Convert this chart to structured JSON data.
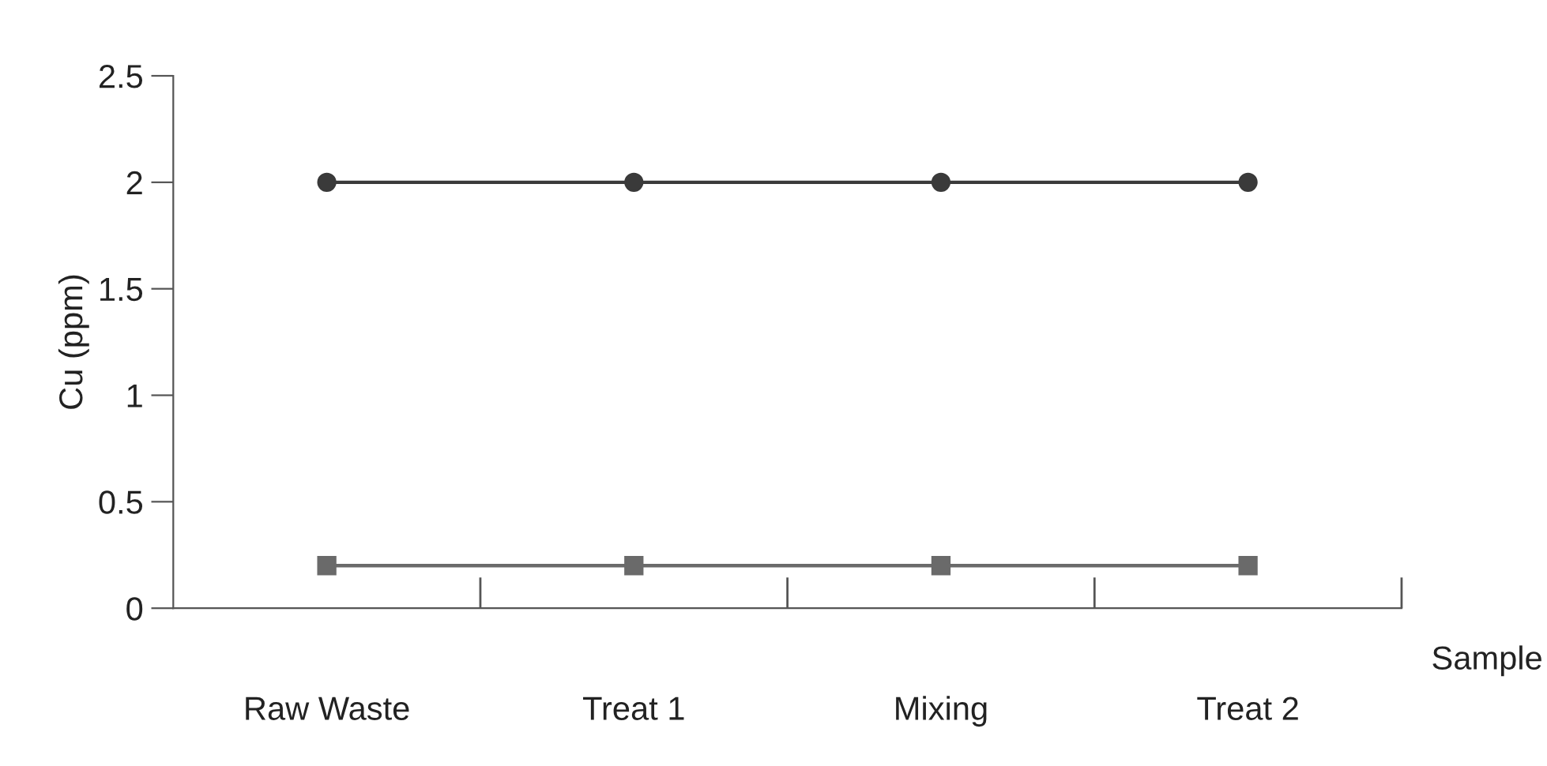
{
  "chart_data": {
    "type": "line",
    "xlabel": "Sample",
    "ylabel": "Cu (ppm)",
    "categories": [
      "Raw Waste",
      "Treat 1",
      "Mixing",
      "Treat 2"
    ],
    "series": [
      {
        "color": "#3a3a3a",
        "marker": "circle",
        "values": [
          2,
          2,
          2,
          2
        ]
      },
      {
        "color": "#6a6a6a",
        "marker": "square",
        "values": [
          0.2,
          0.2,
          0.2,
          0.2
        ]
      }
    ],
    "ylim": [
      0,
      2.5
    ],
    "yticks": [
      0,
      0.5,
      1,
      1.5,
      2,
      2.5
    ],
    "grid": false,
    "legend": false,
    "line_style": "solid"
  }
}
